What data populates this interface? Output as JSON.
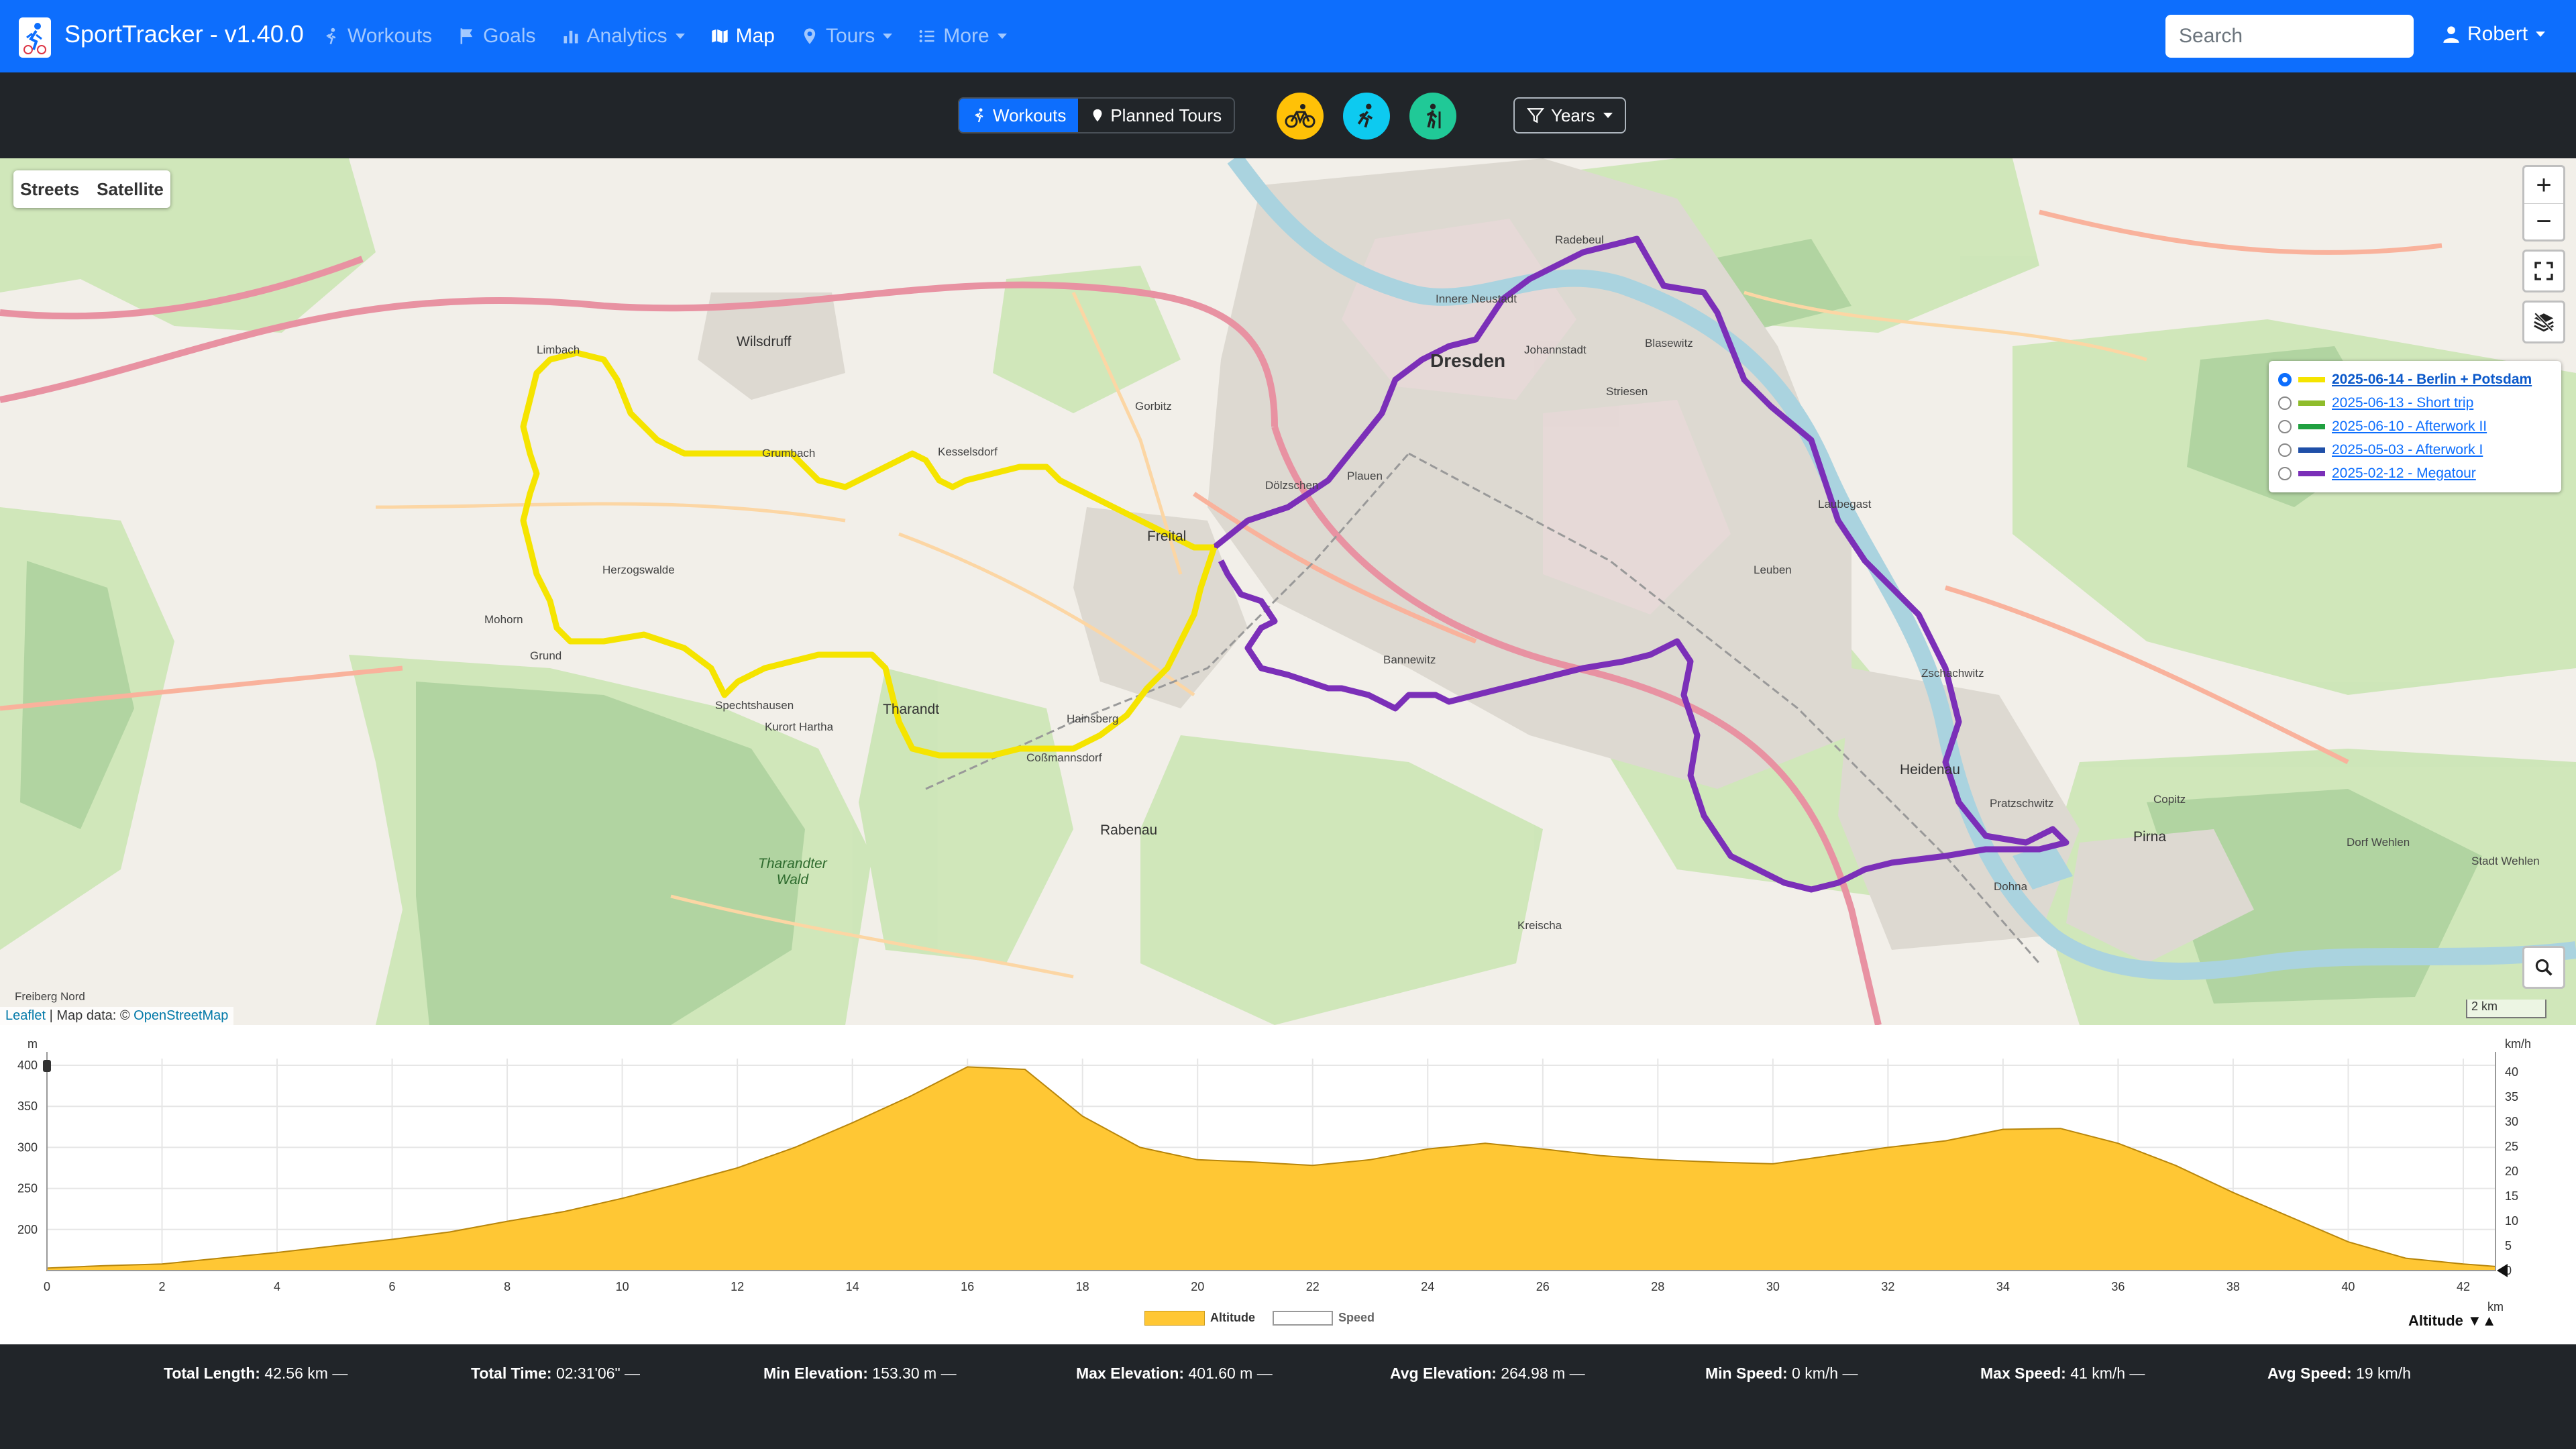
{
  "app": {
    "title": "SportTracker - v1.40.0"
  },
  "nav": {
    "workouts": "Workouts",
    "goals": "Goals",
    "analytics": "Analytics",
    "map": "Map",
    "tours": "Tours",
    "more": "More"
  },
  "search": {
    "placeholder": "Search"
  },
  "user": {
    "name": "Robert"
  },
  "toolbar": {
    "workouts": "Workouts",
    "planned_tours": "Planned Tours",
    "years": "Years",
    "sport_colors": {
      "cycling": "#ffc107",
      "running": "#0dcaf0",
      "hiking": "#20c997"
    }
  },
  "map": {
    "layer_streets": "Streets",
    "layer_satellite": "Satellite",
    "zoom_in": "+",
    "zoom_out": "−",
    "attribution_leaflet": "Leaflet",
    "attribution_text": " | Map data: © ",
    "attribution_osm": "OpenStreetMap",
    "scale": "2 km",
    "tours": [
      {
        "label": "2025-06-14 - Berlin + Potsdam",
        "color": "#f5e400",
        "selected": true
      },
      {
        "label": "2025-06-13 - Short trip",
        "color": "#8fbc2b",
        "selected": false
      },
      {
        "label": "2025-06-10 - Afterwork II",
        "color": "#20a040",
        "selected": false
      },
      {
        "label": "2025-05-03 - Afterwork I",
        "color": "#1f4fa8",
        "selected": false
      },
      {
        "label": "2025-02-12 - Megatour",
        "color": "#7b2fb8",
        "selected": false
      }
    ],
    "place_labels": {
      "dresden": "Dresden",
      "freital": "Freital",
      "wilsdruff": "Wilsdruff",
      "heidenau": "Heidenau",
      "pirna": "Pirna",
      "tharandt": "Tharandt",
      "rabenau": "Rabenau",
      "tharandter_wald": "Tharandter\nWald",
      "grumbach": "Grumbach",
      "hainsberg": "Hainsberg",
      "innere_neustadt": "Innere Neustadt",
      "johannstadt": "Johannstadt",
      "blasewitz": "Blasewitz",
      "plauen": "Plauen",
      "gorbitz": "Gorbitz",
      "radebeul": "Radebeul",
      "dolzschen": "Dölzschen",
      "striesen": "Striesen",
      "leuben": "Leuben",
      "kesselsdorf": "Kesselsdorf",
      "dorf_wehlen": "Dorf Wehlen",
      "stadt_wehlen": "Stadt Wehlen",
      "freiberg_nord": "Freiberg Nord",
      "limbach": "Limbach",
      "mohorn": "Mohorn",
      "herzogswalde": "Herzogswalde",
      "grund": "Grund",
      "spechtshausen": "Spechtshausen",
      "kurort_hartha": "Kurort Hartha",
      "cossmannsdorf": "Coßmannsdorf",
      "bannewitz": "Bannewitz",
      "kreischa": "Kreischa",
      "dohna": "Dohna",
      "copitz": "Copitz",
      "zschachwitz": "Zschachwitz",
      "laubegast": "Laubegast",
      "pratzschwitz": "Pratzschwitz"
    }
  },
  "chart_data": {
    "type": "area",
    "x": [
      0,
      1,
      2,
      3,
      4,
      5,
      6,
      7,
      8,
      9,
      10,
      11,
      12,
      13,
      14,
      15,
      16,
      17,
      18,
      19,
      20,
      21,
      22,
      23,
      24,
      25,
      26,
      27,
      28,
      29,
      30,
      31,
      32,
      33,
      34,
      35,
      36,
      37,
      38,
      39,
      40,
      41,
      42,
      42.56
    ],
    "series": [
      {
        "name": "Altitude",
        "color": "#ffc734",
        "values": [
          153,
          156,
          158,
          165,
          172,
          180,
          188,
          197,
          210,
          222,
          238,
          256,
          275,
          300,
          330,
          362,
          398,
          395,
          338,
          300,
          285,
          282,
          278,
          285,
          298,
          305,
          298,
          290,
          285,
          282,
          280,
          290,
          300,
          308,
          322,
          323,
          305,
          278,
          245,
          215,
          185,
          165,
          158,
          155
        ]
      }
    ],
    "legend": [
      "Altitude",
      "Speed"
    ],
    "y_left": {
      "label": "m",
      "ticks": [
        200,
        250,
        300,
        350,
        400
      ],
      "range": [
        150,
        400
      ]
    },
    "y_right": {
      "label": "km/h",
      "ticks": [
        0,
        5,
        10,
        15,
        20,
        25,
        30,
        35,
        40
      ],
      "range": [
        0,
        40
      ]
    },
    "x_axis": {
      "label": "km",
      "ticks": [
        0,
        2,
        4,
        6,
        8,
        10,
        12,
        14,
        16,
        18,
        20,
        22,
        24,
        26,
        28,
        30,
        32,
        34,
        36,
        38,
        40,
        42
      ],
      "range": [
        0,
        42.56
      ]
    },
    "toggle_label": "Altitude"
  },
  "stats": {
    "total_length_label": "Total Length:",
    "total_length": " 42.56 km —",
    "total_time_label": "Total Time:",
    "total_time": " 02:31'06\" —",
    "min_elevation_label": "Min Elevation:",
    "min_elevation": " 153.30 m —",
    "max_elevation_label": "Max Elevation:",
    "max_elevation": " 401.60 m —",
    "avg_elevation_label": "Avg Elevation:",
    "avg_elevation": " 264.98 m —",
    "min_speed_label": "Min Speed:",
    "min_speed": " 0 km/h —",
    "max_speed_label": "Max Speed:",
    "max_speed": " 41 km/h —",
    "avg_speed_label": "Avg Speed:",
    "avg_speed": " 19 km/h"
  }
}
